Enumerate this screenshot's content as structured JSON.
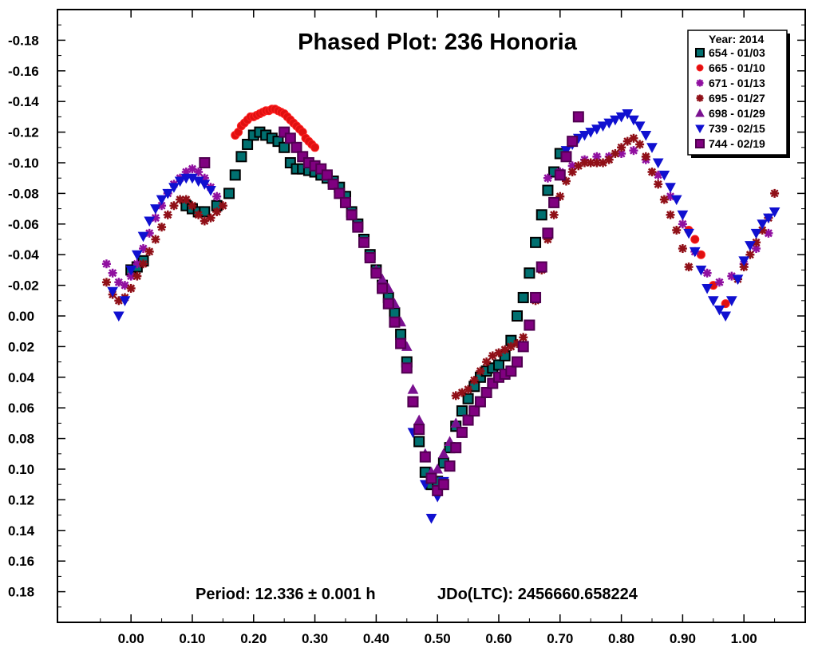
{
  "chart_data": {
    "type": "scatter",
    "title": "Phased Plot: 236 Honoria",
    "footer": {
      "period": "Period: 12.336 ± 0.001 h",
      "jdo": "JDo(LTC): 2456660.658224"
    },
    "xlabel": "",
    "ylabel": "",
    "xlim": [
      -0.12,
      1.1
    ],
    "ylim": [
      0.2,
      -0.2
    ],
    "y_inverted": true,
    "x_ticks": [
      "0.00",
      "0.10",
      "0.20",
      "0.30",
      "0.40",
      "0.50",
      "0.60",
      "0.70",
      "0.80",
      "0.90",
      "1.00"
    ],
    "y_ticks": [
      "-0.18",
      "-0.16",
      "-0.14",
      "-0.12",
      "-0.10",
      "-0.08",
      "-0.06",
      "-0.04",
      "-0.02",
      "0.00",
      "0.02",
      "0.04",
      "0.06",
      "0.08",
      "0.10",
      "0.12",
      "0.14",
      "0.16",
      "0.18"
    ],
    "legend": {
      "position": "top-right",
      "title": "Year: 2014"
    },
    "series": [
      {
        "name": "654 - 01/03",
        "marker": "square",
        "color": "#007070",
        "edge": "#000000",
        "x": [
          0.0,
          0.01,
          0.02,
          0.09,
          0.1,
          0.11,
          0.12,
          0.14,
          0.16,
          0.17,
          0.18,
          0.19,
          0.2,
          0.21,
          0.22,
          0.23,
          0.24,
          0.25,
          0.26,
          0.27,
          0.28,
          0.29,
          0.3,
          0.31,
          0.32,
          0.33,
          0.34,
          0.35,
          0.36,
          0.37,
          0.38,
          0.39,
          0.4,
          0.41,
          0.42,
          0.43,
          0.44,
          0.45,
          0.46,
          0.47,
          0.48,
          0.49,
          0.5,
          0.51,
          0.52,
          0.53,
          0.54,
          0.55,
          0.56,
          0.57,
          0.58,
          0.59,
          0.6,
          0.61,
          0.62,
          0.63,
          0.64,
          0.65,
          0.66,
          0.67,
          0.68,
          0.69,
          0.7
        ],
        "y": [
          -0.03,
          -0.032,
          -0.036,
          -0.072,
          -0.07,
          -0.068,
          -0.068,
          -0.072,
          -0.08,
          -0.092,
          -0.104,
          -0.112,
          -0.118,
          -0.12,
          -0.118,
          -0.116,
          -0.114,
          -0.11,
          -0.1,
          -0.096,
          -0.096,
          -0.095,
          -0.094,
          -0.092,
          -0.09,
          -0.088,
          -0.084,
          -0.078,
          -0.068,
          -0.06,
          -0.05,
          -0.04,
          -0.03,
          -0.02,
          -0.012,
          -0.002,
          0.012,
          0.03,
          0.056,
          0.082,
          0.102,
          0.11,
          0.108,
          0.096,
          0.086,
          0.072,
          0.062,
          0.054,
          0.046,
          0.04,
          0.036,
          0.034,
          0.032,
          0.026,
          0.016,
          0.0,
          -0.012,
          -0.028,
          -0.048,
          -0.066,
          -0.082,
          -0.094,
          -0.106
        ]
      },
      {
        "name": "665 - 01/10",
        "marker": "circle",
        "color": "#e01010",
        "edge": "#ff2020",
        "x": [
          0.17,
          0.175,
          0.18,
          0.185,
          0.19,
          0.195,
          0.2,
          0.205,
          0.21,
          0.215,
          0.22,
          0.225,
          0.23,
          0.235,
          0.24,
          0.245,
          0.25,
          0.255,
          0.26,
          0.265,
          0.27,
          0.275,
          0.28,
          0.285,
          0.29,
          0.295,
          0.3,
          0.91,
          0.92,
          0.93,
          0.95,
          0.97
        ],
        "y": [
          -0.118,
          -0.12,
          -0.124,
          -0.126,
          -0.128,
          -0.13,
          -0.13,
          -0.131,
          -0.132,
          -0.133,
          -0.134,
          -0.134,
          -0.135,
          -0.135,
          -0.134,
          -0.133,
          -0.132,
          -0.13,
          -0.128,
          -0.126,
          -0.124,
          -0.122,
          -0.12,
          -0.116,
          -0.114,
          -0.112,
          -0.11,
          -0.056,
          -0.05,
          -0.04,
          -0.02,
          -0.008
        ]
      },
      {
        "name": "671 - 01/13",
        "marker": "asterisk",
        "color": "#9010a0",
        "edge": "#9010a0",
        "x": [
          -0.04,
          -0.03,
          -0.02,
          -0.01,
          0.0,
          0.01,
          0.02,
          0.03,
          0.04,
          0.05,
          0.06,
          0.07,
          0.08,
          0.09,
          0.1,
          0.11,
          0.12,
          0.13,
          0.14,
          0.68,
          0.7,
          0.72,
          0.74,
          0.76,
          0.78,
          0.8,
          0.82,
          0.84,
          0.86,
          0.88,
          0.9,
          0.92,
          0.94,
          0.96,
          0.98,
          1.0,
          1.02,
          1.04
        ],
        "y": [
          -0.034,
          -0.028,
          -0.022,
          -0.02,
          -0.026,
          -0.034,
          -0.044,
          -0.054,
          -0.064,
          -0.072,
          -0.08,
          -0.086,
          -0.09,
          -0.094,
          -0.096,
          -0.094,
          -0.09,
          -0.084,
          -0.078,
          -0.09,
          -0.094,
          -0.098,
          -0.102,
          -0.104,
          -0.104,
          -0.106,
          -0.108,
          -0.102,
          -0.092,
          -0.078,
          -0.06,
          -0.042,
          -0.028,
          -0.022,
          -0.026,
          -0.034,
          -0.044,
          -0.054
        ]
      },
      {
        "name": "695 - 01/27",
        "marker": "asterisk",
        "color": "#901018",
        "edge": "#901018",
        "x": [
          -0.04,
          -0.03,
          -0.02,
          -0.01,
          0.0,
          0.01,
          0.02,
          0.03,
          0.04,
          0.05,
          0.06,
          0.07,
          0.08,
          0.09,
          0.1,
          0.11,
          0.12,
          0.13,
          0.14,
          0.15,
          0.53,
          0.54,
          0.55,
          0.56,
          0.57,
          0.58,
          0.59,
          0.6,
          0.61,
          0.62,
          0.63,
          0.64,
          0.65,
          0.66,
          0.67,
          0.68,
          0.69,
          0.7,
          0.71,
          0.72,
          0.73,
          0.74,
          0.75,
          0.76,
          0.77,
          0.78,
          0.79,
          0.8,
          0.81,
          0.82,
          0.83,
          0.84,
          0.85,
          0.86,
          0.87,
          0.88,
          0.89,
          0.9,
          0.91,
          0.99,
          1.0,
          1.01,
          1.02,
          1.03,
          1.04,
          1.05
        ],
        "y": [
          -0.022,
          -0.014,
          -0.01,
          -0.012,
          -0.018,
          -0.026,
          -0.034,
          -0.042,
          -0.05,
          -0.058,
          -0.066,
          -0.072,
          -0.076,
          -0.076,
          -0.072,
          -0.066,
          -0.062,
          -0.064,
          -0.068,
          -0.072,
          0.052,
          0.05,
          0.048,
          0.042,
          0.036,
          0.03,
          0.026,
          0.024,
          0.022,
          0.02,
          0.018,
          0.014,
          0.006,
          -0.01,
          -0.03,
          -0.05,
          -0.066,
          -0.078,
          -0.088,
          -0.094,
          -0.098,
          -0.1,
          -0.1,
          -0.1,
          -0.1,
          -0.102,
          -0.106,
          -0.11,
          -0.114,
          -0.116,
          -0.112,
          -0.104,
          -0.094,
          -0.086,
          -0.076,
          -0.066,
          -0.056,
          -0.044,
          -0.032,
          -0.024,
          -0.032,
          -0.04,
          -0.048,
          -0.056,
          -0.064,
          -0.08
        ]
      },
      {
        "name": "698 - 01/29",
        "marker": "triangle",
        "color": "#7a1090",
        "edge": "#7a1090",
        "x": [
          0.4,
          0.41,
          0.42,
          0.43,
          0.44,
          0.45,
          0.46,
          0.47,
          0.48,
          0.49,
          0.5,
          0.51,
          0.52,
          0.53
        ],
        "y": [
          -0.03,
          -0.024,
          -0.018,
          -0.008,
          0.004,
          0.02,
          0.048,
          0.068,
          0.09,
          0.102,
          0.1,
          0.09,
          0.082,
          0.07
        ]
      },
      {
        "name": "739 - 02/15",
        "marker": "triangle-down",
        "color": "#1010d0",
        "edge": "#1010d0",
        "x": [
          -0.03,
          -0.02,
          -0.01,
          0.0,
          0.01,
          0.02,
          0.03,
          0.04,
          0.05,
          0.06,
          0.07,
          0.08,
          0.09,
          0.1,
          0.11,
          0.12,
          0.13,
          0.46,
          0.48,
          0.49,
          0.5,
          0.51,
          0.71,
          0.72,
          0.73,
          0.74,
          0.75,
          0.76,
          0.77,
          0.78,
          0.79,
          0.8,
          0.81,
          0.82,
          0.83,
          0.84,
          0.85,
          0.86,
          0.87,
          0.88,
          0.89,
          0.9,
          0.91,
          0.92,
          0.93,
          0.94,
          0.95,
          0.96,
          0.97,
          0.98,
          0.99,
          1.0,
          1.01,
          1.02,
          1.03,
          1.04,
          1.05
        ],
        "y": [
          -0.016,
          0.0,
          -0.01,
          -0.03,
          -0.04,
          -0.052,
          -0.062,
          -0.07,
          -0.076,
          -0.08,
          -0.084,
          -0.088,
          -0.09,
          -0.09,
          -0.088,
          -0.086,
          -0.082,
          0.076,
          0.11,
          0.132,
          0.118,
          0.108,
          -0.108,
          -0.112,
          -0.116,
          -0.118,
          -0.12,
          -0.122,
          -0.124,
          -0.126,
          -0.128,
          -0.13,
          -0.132,
          -0.128,
          -0.124,
          -0.118,
          -0.11,
          -0.1,
          -0.092,
          -0.084,
          -0.076,
          -0.066,
          -0.054,
          -0.042,
          -0.03,
          -0.018,
          -0.01,
          -0.004,
          0.0,
          -0.01,
          -0.024,
          -0.036,
          -0.046,
          -0.054,
          -0.06,
          -0.064,
          -0.068
        ]
      },
      {
        "name": "744 - 02/19",
        "marker": "square",
        "color": "#800080",
        "edge": "#500050",
        "x": [
          0.12,
          0.25,
          0.26,
          0.27,
          0.28,
          0.29,
          0.3,
          0.31,
          0.32,
          0.33,
          0.34,
          0.35,
          0.36,
          0.37,
          0.38,
          0.39,
          0.4,
          0.41,
          0.42,
          0.43,
          0.44,
          0.45,
          0.46,
          0.47,
          0.48,
          0.49,
          0.5,
          0.51,
          0.52,
          0.53,
          0.54,
          0.55,
          0.56,
          0.57,
          0.58,
          0.59,
          0.6,
          0.61,
          0.62,
          0.63,
          0.64,
          0.65,
          0.66,
          0.67,
          0.68,
          0.69,
          0.7,
          0.71,
          0.72,
          0.73
        ],
        "y": [
          -0.1,
          -0.12,
          -0.116,
          -0.11,
          -0.104,
          -0.1,
          -0.098,
          -0.096,
          -0.092,
          -0.086,
          -0.08,
          -0.074,
          -0.066,
          -0.058,
          -0.048,
          -0.038,
          -0.028,
          -0.018,
          -0.008,
          0.004,
          0.018,
          0.034,
          0.056,
          0.074,
          0.092,
          0.106,
          0.114,
          0.11,
          0.098,
          0.086,
          0.076,
          0.068,
          0.062,
          0.056,
          0.05,
          0.044,
          0.04,
          0.038,
          0.036,
          0.03,
          0.02,
          0.006,
          -0.012,
          -0.032,
          -0.054,
          -0.074,
          -0.092,
          -0.104,
          -0.114,
          -0.13
        ]
      }
    ]
  }
}
